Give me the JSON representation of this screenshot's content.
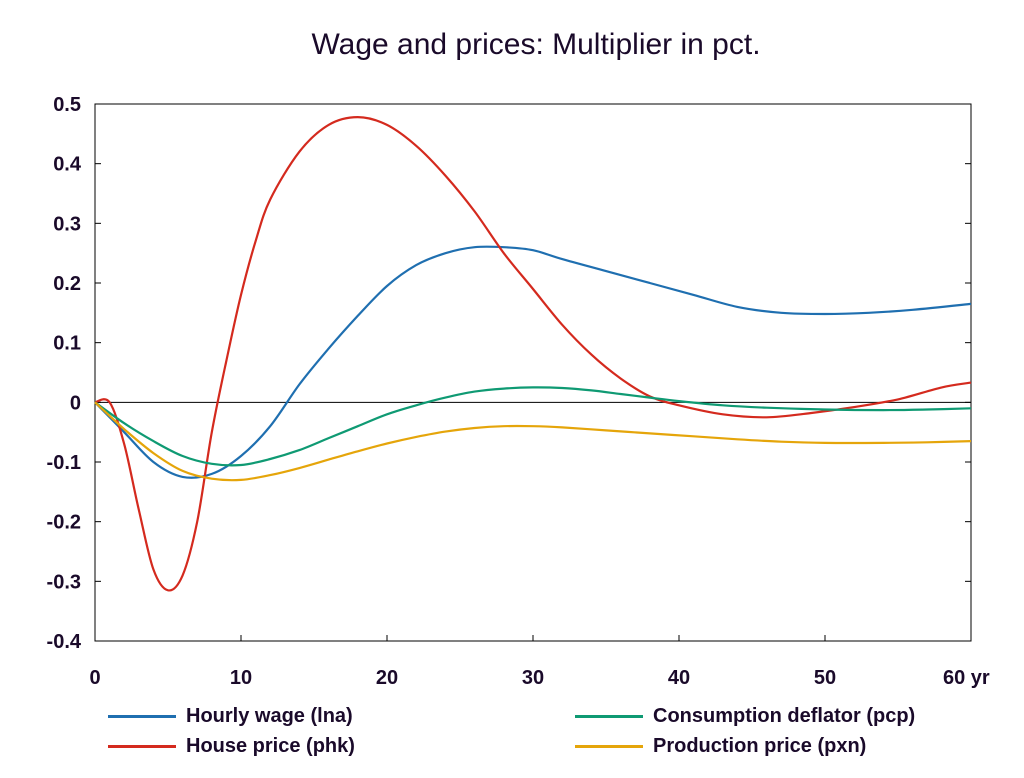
{
  "chart_data": {
    "type": "line",
    "title": "Wage and prices: Multiplier in pct.",
    "xlabel": "",
    "ylabel": "",
    "x_unit_label": "yr",
    "xlim": [
      0,
      60
    ],
    "ylim": [
      -0.4,
      0.5
    ],
    "xticks": [
      0,
      10,
      20,
      30,
      40,
      50,
      60
    ],
    "xtick_labels": [
      "0",
      "10",
      "20",
      "30",
      "40",
      "50",
      "60 yr"
    ],
    "yticks": [
      -0.4,
      -0.3,
      -0.2,
      -0.1,
      0,
      0.1,
      0.2,
      0.3,
      0.4,
      0.5
    ],
    "ytick_labels": [
      "-0.4",
      "-0.3",
      "-0.2",
      "-0.1",
      "0",
      "0.1",
      "0.2",
      "0.3",
      "0.4",
      "0.5"
    ],
    "grid": false,
    "legend_position": "bottom",
    "series": [
      {
        "name": "Hourly wage (lna)",
        "color": "#1f6fb0",
        "points": [
          [
            0,
            0
          ],
          [
            2,
            -0.05
          ],
          [
            4,
            -0.1
          ],
          [
            6,
            -0.125
          ],
          [
            8,
            -0.12
          ],
          [
            10,
            -0.09
          ],
          [
            12,
            -0.04
          ],
          [
            14,
            0.03
          ],
          [
            16,
            0.09
          ],
          [
            18,
            0.145
          ],
          [
            20,
            0.195
          ],
          [
            22,
            0.23
          ],
          [
            24,
            0.25
          ],
          [
            26,
            0.26
          ],
          [
            28,
            0.26
          ],
          [
            30,
            0.255
          ],
          [
            32,
            0.24
          ],
          [
            35,
            0.22
          ],
          [
            38,
            0.2
          ],
          [
            41,
            0.18
          ],
          [
            44,
            0.16
          ],
          [
            47,
            0.15
          ],
          [
            50,
            0.148
          ],
          [
            53,
            0.15
          ],
          [
            56,
            0.155
          ],
          [
            60,
            0.165
          ]
        ]
      },
      {
        "name": "House price (phk)",
        "color": "#d42a1e",
        "points": [
          [
            0,
            0
          ],
          [
            1,
            0
          ],
          [
            2,
            -0.07
          ],
          [
            3,
            -0.18
          ],
          [
            4,
            -0.28
          ],
          [
            5,
            -0.315
          ],
          [
            6,
            -0.29
          ],
          [
            7,
            -0.2
          ],
          [
            8,
            -0.05
          ],
          [
            9,
            0.07
          ],
          [
            10,
            0.18
          ],
          [
            11,
            0.27
          ],
          [
            12,
            0.34
          ],
          [
            14,
            0.42
          ],
          [
            16,
            0.465
          ],
          [
            18,
            0.478
          ],
          [
            20,
            0.465
          ],
          [
            22,
            0.43
          ],
          [
            24,
            0.38
          ],
          [
            26,
            0.32
          ],
          [
            28,
            0.25
          ],
          [
            30,
            0.19
          ],
          [
            32,
            0.13
          ],
          [
            34,
            0.08
          ],
          [
            36,
            0.04
          ],
          [
            38,
            0.01
          ],
          [
            40,
            -0.005
          ],
          [
            43,
            -0.02
          ],
          [
            46,
            -0.025
          ],
          [
            49,
            -0.018
          ],
          [
            52,
            -0.008
          ],
          [
            55,
            0.005
          ],
          [
            58,
            0.025
          ],
          [
            60,
            0.033
          ]
        ]
      },
      {
        "name": "Consumption deflator (pcp)",
        "color": "#0f9a73",
        "points": [
          [
            0,
            0
          ],
          [
            2,
            -0.035
          ],
          [
            4,
            -0.065
          ],
          [
            6,
            -0.09
          ],
          [
            8,
            -0.103
          ],
          [
            10,
            -0.105
          ],
          [
            12,
            -0.095
          ],
          [
            14,
            -0.08
          ],
          [
            16,
            -0.06
          ],
          [
            18,
            -0.04
          ],
          [
            20,
            -0.02
          ],
          [
            22,
            -0.005
          ],
          [
            24,
            0.008
          ],
          [
            26,
            0.018
          ],
          [
            28,
            0.023
          ],
          [
            30,
            0.025
          ],
          [
            32,
            0.024
          ],
          [
            34,
            0.02
          ],
          [
            36,
            0.014
          ],
          [
            38,
            0.008
          ],
          [
            40,
            0.002
          ],
          [
            43,
            -0.005
          ],
          [
            46,
            -0.009
          ],
          [
            50,
            -0.012
          ],
          [
            54,
            -0.013
          ],
          [
            57,
            -0.012
          ],
          [
            60,
            -0.01
          ]
        ]
      },
      {
        "name": "Production price (pxn)",
        "color": "#e5a50a",
        "points": [
          [
            0,
            0
          ],
          [
            2,
            -0.045
          ],
          [
            4,
            -0.085
          ],
          [
            6,
            -0.115
          ],
          [
            8,
            -0.128
          ],
          [
            10,
            -0.13
          ],
          [
            12,
            -0.122
          ],
          [
            14,
            -0.11
          ],
          [
            16,
            -0.096
          ],
          [
            18,
            -0.082
          ],
          [
            20,
            -0.069
          ],
          [
            22,
            -0.058
          ],
          [
            24,
            -0.049
          ],
          [
            26,
            -0.043
          ],
          [
            28,
            -0.04
          ],
          [
            30,
            -0.04
          ],
          [
            32,
            -0.042
          ],
          [
            35,
            -0.047
          ],
          [
            38,
            -0.052
          ],
          [
            41,
            -0.057
          ],
          [
            44,
            -0.062
          ],
          [
            47,
            -0.066
          ],
          [
            50,
            -0.068
          ],
          [
            54,
            -0.068
          ],
          [
            57,
            -0.067
          ],
          [
            60,
            -0.065
          ]
        ]
      }
    ]
  },
  "legend": [
    {
      "label": "Hourly wage (lna)",
      "color": "#1f6fb0"
    },
    {
      "label": "Consumption deflator (pcp)",
      "color": "#0f9a73"
    },
    {
      "label": "House price (phk)",
      "color": "#d42a1e"
    },
    {
      "label": "Production price (pxn)",
      "color": "#e5a50a"
    }
  ]
}
